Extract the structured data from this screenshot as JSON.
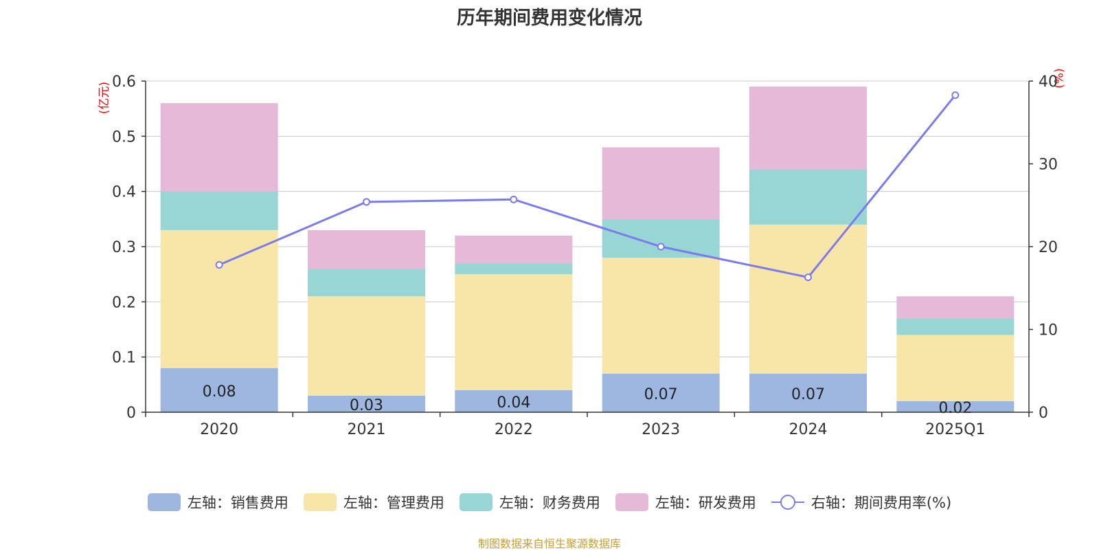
{
  "title": "历年期间费用变化情况",
  "left_unit": "(亿元)",
  "right_unit": "(%)",
  "footer": "制图数据来自恒生聚源数据库",
  "colors": {
    "sales": "#9db7e1",
    "admin": "#f7e6a7",
    "finance": "#98d5d5",
    "rd": "#e7b9d9",
    "rate": "#7b7bee",
    "grid": "#c8c8c8",
    "axis": "#333333"
  },
  "legend": [
    {
      "label": "左轴：销售费用",
      "color": "#9db7e1",
      "kind": "bar"
    },
    {
      "label": "左轴：管理费用",
      "color": "#f7e6a7",
      "kind": "bar"
    },
    {
      "label": "左轴：财务费用",
      "color": "#98d5d5",
      "kind": "bar"
    },
    {
      "label": "左轴：研发费用",
      "color": "#e7b9d9",
      "kind": "bar"
    },
    {
      "label": "右轴：期间费用率(%)",
      "color": "#7b7bee",
      "kind": "line"
    }
  ],
  "chart_data": {
    "type": "bar",
    "stacked": true,
    "title": "历年期间费用变化情况",
    "categories": [
      "2020",
      "2021",
      "2022",
      "2023",
      "2024",
      "2025Q1"
    ],
    "series": [
      {
        "name": "左轴：销售费用",
        "axis": "left",
        "values": [
          0.08,
          0.03,
          0.04,
          0.07,
          0.07,
          0.02
        ],
        "labels": [
          "0.08",
          "0.03",
          "0.04",
          "0.07",
          "0.07",
          "0.02"
        ]
      },
      {
        "name": "左轴：管理费用",
        "axis": "left",
        "values": [
          0.25,
          0.18,
          0.21,
          0.21,
          0.27,
          0.12
        ]
      },
      {
        "name": "左轴：财务费用",
        "axis": "left",
        "values": [
          0.07,
          0.05,
          0.02,
          0.07,
          0.1,
          0.03
        ]
      },
      {
        "name": "左轴：研发费用",
        "axis": "left",
        "values": [
          0.16,
          0.07,
          0.05,
          0.13,
          0.15,
          0.04
        ]
      },
      {
        "name": "右轴：期间费用率(%)",
        "axis": "right",
        "type": "line",
        "values": [
          17.8,
          25.4,
          25.7,
          20.0,
          16.3,
          38.3
        ]
      }
    ],
    "left_axis": {
      "label": "(亿元)",
      "min": 0,
      "max": 0.6,
      "ticks": [
        "0",
        "0.1",
        "0.2",
        "0.3",
        "0.4",
        "0.5",
        "0.6"
      ],
      "tick_values": [
        0,
        0.1,
        0.2,
        0.3,
        0.4,
        0.5,
        0.6
      ]
    },
    "right_axis": {
      "label": "(%)",
      "min": 0,
      "max": 40,
      "ticks": [
        "0",
        "10",
        "20",
        "30",
        "40"
      ],
      "tick_values": [
        0,
        10,
        20,
        30,
        40
      ]
    },
    "grid": true,
    "legend_position": "bottom"
  }
}
